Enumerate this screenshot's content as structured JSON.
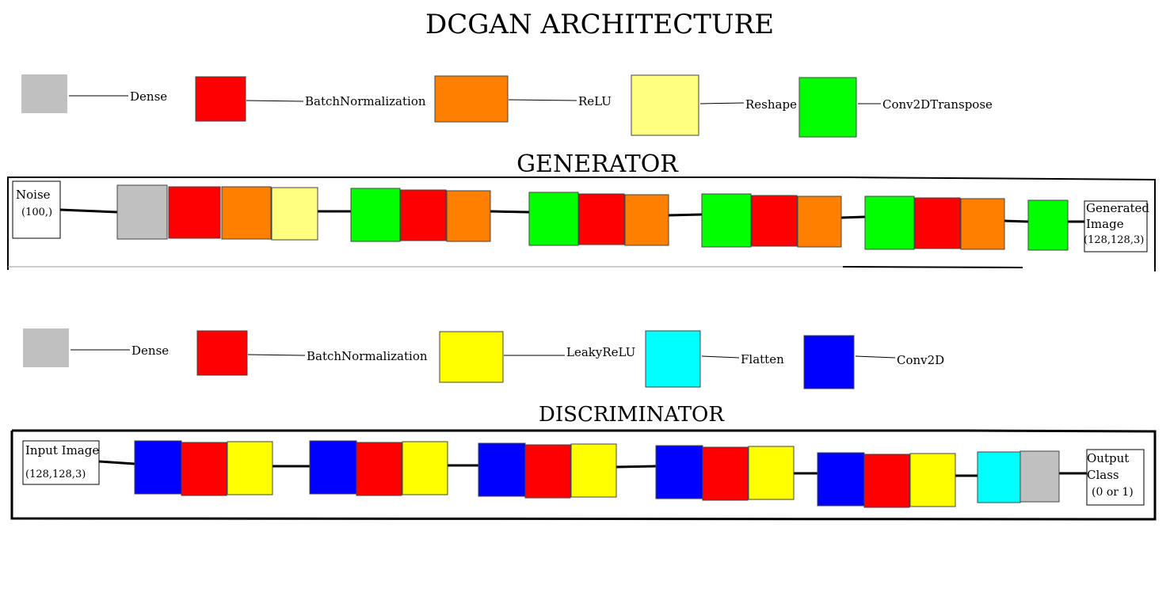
{
  "title": "DCGAN  ARCHITECTURE",
  "colors": {
    "dense": "#c0c0c0",
    "batchnorm": "#ff0000",
    "relu": "#ff8000",
    "reshape": "#ffff80",
    "conv2dtranspose": "#00ff00",
    "leakyrelu": "#ffff00",
    "flatten": "#00ffff",
    "conv2d": "#0000ff"
  },
  "generator": {
    "title": "GENERATOR",
    "legend": [
      {
        "type": "dense",
        "label": "Dense"
      },
      {
        "type": "batchnorm",
        "label": "BatchNormalization"
      },
      {
        "type": "relu",
        "label": "ReLU"
      },
      {
        "type": "reshape",
        "label": "Reshape"
      },
      {
        "type": "conv2dtranspose",
        "label": "Conv2DTranspose"
      }
    ],
    "input": {
      "line1": "Noise",
      "line2": "(100,)"
    },
    "blocks": [
      [
        "dense",
        "batchnorm",
        "relu",
        "reshape"
      ],
      [
        "conv2dtranspose",
        "batchnorm",
        "relu"
      ],
      [
        "conv2dtranspose",
        "batchnorm",
        "relu"
      ],
      [
        "conv2dtranspose",
        "batchnorm",
        "relu"
      ],
      [
        "conv2dtranspose",
        "batchnorm",
        "relu"
      ],
      [
        "conv2dtranspose"
      ]
    ],
    "output": {
      "line1": "Generated",
      "line2": "Image",
      "line3": "(128,128,3)"
    }
  },
  "discriminator": {
    "title": "DISCRIMINATOR",
    "legend": [
      {
        "type": "dense",
        "label": "Dense"
      },
      {
        "type": "batchnorm",
        "label": "BatchNormalization"
      },
      {
        "type": "leakyrelu",
        "label": "LeakyReLU"
      },
      {
        "type": "flatten",
        "label": "Flatten"
      },
      {
        "type": "conv2d",
        "label": "Conv2D"
      }
    ],
    "input": {
      "line1": "Input  Image",
      "line2": "(128,128,3)"
    },
    "blocks": [
      [
        "conv2d",
        "batchnorm",
        "leakyrelu"
      ],
      [
        "conv2d",
        "batchnorm",
        "leakyrelu"
      ],
      [
        "conv2d",
        "batchnorm",
        "leakyrelu"
      ],
      [
        "conv2d",
        "batchnorm",
        "leakyrelu"
      ],
      [
        "conv2d",
        "batchnorm",
        "leakyrelu"
      ],
      [
        "flatten",
        "dense"
      ]
    ],
    "output": {
      "line1": "Output",
      "line2": "Class",
      "line3": "(0  or  1)"
    }
  }
}
